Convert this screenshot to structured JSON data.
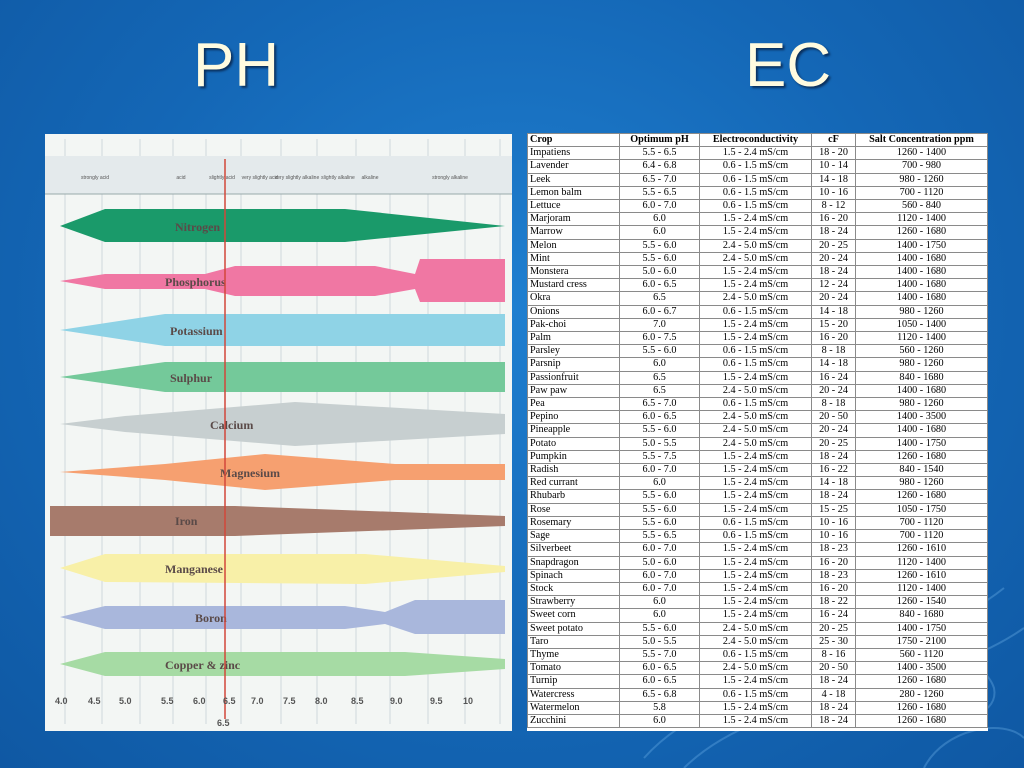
{
  "slide": {
    "ph_title": "PH",
    "ec_title": "EC"
  },
  "ph_chart": {
    "zones": [
      "strongly acid",
      "acid",
      "slightly acid",
      "very slightly acid",
      "very slightly alkaline",
      "slightly alkaline",
      "alkaline",
      "strongly alkaline"
    ],
    "nutrients": [
      "Nitrogen",
      "Phosphorus",
      "Potassium",
      "Sulphur",
      "Calcium",
      "Magnesium",
      "Iron",
      "Manganese",
      "Boron",
      "Copper & zinc"
    ],
    "ph_ticks": [
      "4.0",
      "4.5",
      "5.0",
      "5.5",
      "6.0",
      "6.5",
      "7.0",
      "7.5",
      "8.0",
      "8.5",
      "9.0",
      "9.5",
      "10"
    ],
    "marker_label": "6.5",
    "colors": {
      "Nitrogen": "#1a9a6a",
      "Phosphorus": "#f077a3",
      "Potassium": "#8fd3e6",
      "Sulphur": "#74c99a",
      "Calcium": "#c7cfd0",
      "Magnesium": "#f6a070",
      "Iron": "#a77b6c",
      "Manganese": "#f8f0a8",
      "Boron": "#a9b7dc",
      "Copper & zinc": "#a6dba4"
    }
  },
  "ec_table": {
    "headers": [
      "Crop",
      "Optimum pH",
      "Electroconductivity",
      "cF",
      "Salt Concentration ppm"
    ],
    "rows": [
      [
        "Impatiens",
        "5.5 - 6.5",
        "1.5 - 2.4 mS/cm",
        "18 - 20",
        "1260 - 1400"
      ],
      [
        "Lavender",
        "6.4 - 6.8",
        "0.6 - 1.5 mS/cm",
        "10 - 14",
        "700 - 980"
      ],
      [
        "Leek",
        "6.5 - 7.0",
        "0.6 - 1.5 mS/cm",
        "14 - 18",
        "980 - 1260"
      ],
      [
        "Lemon balm",
        "5.5 - 6.5",
        "0.6 - 1.5 mS/cm",
        "10 - 16",
        "700 - 1120"
      ],
      [
        "Lettuce",
        "6.0 - 7.0",
        "0.6 - 1.5 mS/cm",
        "8 - 12",
        "560 - 840"
      ],
      [
        "Marjoram",
        "6.0",
        "1.5 - 2.4 mS/cm",
        "16 - 20",
        "1120 - 1400"
      ],
      [
        "Marrow",
        "6.0",
        "1.5 - 2.4 mS/cm",
        "18 - 24",
        "1260 - 1680"
      ],
      [
        "Melon",
        "5.5 - 6.0",
        "2.4 - 5.0 mS/cm",
        "20 - 25",
        "1400 - 1750"
      ],
      [
        "Mint",
        "5.5 - 6.0",
        "2.4 - 5.0 mS/cm",
        "20 - 24",
        "1400 - 1680"
      ],
      [
        "Monstera",
        "5.0 - 6.0",
        "1.5 - 2.4 mS/cm",
        "18 - 24",
        "1400 - 1680"
      ],
      [
        "Mustard cress",
        "6.0 - 6.5",
        "1.5 - 2.4 mS/cm",
        "12 - 24",
        "1400 - 1680"
      ],
      [
        "Okra",
        "6.5",
        "2.4 - 5.0 mS/cm",
        "20 - 24",
        "1400 - 1680"
      ],
      [
        "Onions",
        "6.0 - 6.7",
        "0.6 - 1.5 mS/cm",
        "14 - 18",
        "980 - 1260"
      ],
      [
        "Pak-choi",
        "7.0",
        "1.5 - 2.4 mS/cm",
        "15 - 20",
        "1050 - 1400"
      ],
      [
        "Palm",
        "6.0 - 7.5",
        "1.5 - 2.4 mS/cm",
        "16 - 20",
        "1120 - 1400"
      ],
      [
        "Parsley",
        "5.5 - 6.0",
        "0.6 - 1.5 mS/cm",
        "8 - 18",
        "560 - 1260"
      ],
      [
        "Parsnip",
        "6.0",
        "0.6 - 1.5 mS/cm",
        "14 - 18",
        "980 - 1260"
      ],
      [
        "Passionfruit",
        "6.5",
        "1.5 - 2.4 mS/cm",
        "16 - 24",
        "840 - 1680"
      ],
      [
        "Paw paw",
        "6.5",
        "2.4 - 5.0 mS/cm",
        "20 - 24",
        "1400 - 1680"
      ],
      [
        "Pea",
        "6.5 - 7.0",
        "0.6 - 1.5 mS/cm",
        "8 - 18",
        "980 - 1260"
      ],
      [
        "Pepino",
        "6.0 - 6.5",
        "2.4 - 5.0 mS/cm",
        "20 - 50",
        "1400 - 3500"
      ],
      [
        "Pineapple",
        "5.5 - 6.0",
        "2.4 - 5.0 mS/cm",
        "20 - 24",
        "1400 - 1680"
      ],
      [
        "Potato",
        "5.0 - 5.5",
        "2.4 - 5.0 mS/cm",
        "20 - 25",
        "1400 - 1750"
      ],
      [
        "Pumpkin",
        "5.5 - 7.5",
        "1.5 - 2.4 mS/cm",
        "18 - 24",
        "1260 - 1680"
      ],
      [
        "Radish",
        "6.0 - 7.0",
        "1.5 - 2.4 mS/cm",
        "16 - 22",
        "840 - 1540"
      ],
      [
        "Red currant",
        "6.0",
        "1.5 - 2.4 mS/cm",
        "14 - 18",
        "980 - 1260"
      ],
      [
        "Rhubarb",
        "5.5 - 6.0",
        "1.5 - 2.4 mS/cm",
        "18 - 24",
        "1260 - 1680"
      ],
      [
        "Rose",
        "5.5 - 6.0",
        "1.5 - 2.4 mS/cm",
        "15 - 25",
        "1050 - 1750"
      ],
      [
        "Rosemary",
        "5.5 - 6.0",
        "0.6 - 1.5 mS/cm",
        "10 - 16",
        "700 - 1120"
      ],
      [
        "Sage",
        "5.5 - 6.5",
        "0.6 - 1.5 mS/cm",
        "10 - 16",
        "700 - 1120"
      ],
      [
        "Silverbeet",
        "6.0 - 7.0",
        "1.5 - 2.4 mS/cm",
        "18 - 23",
        "1260 - 1610"
      ],
      [
        "Snapdragon",
        "5.0 - 6.0",
        "1.5 - 2.4 mS/cm",
        "16 - 20",
        "1120 - 1400"
      ],
      [
        "Spinach",
        "6.0 - 7.0",
        "1.5 - 2.4 mS/cm",
        "18 - 23",
        "1260 - 1610"
      ],
      [
        "Stock",
        "6.0 - 7.0",
        "1.5 - 2.4 mS/cm",
        "16 - 20",
        "1120 - 1400"
      ],
      [
        "Strawberry",
        "6.0",
        "1.5 - 2.4 mS/cm",
        "18 - 22",
        "1260 - 1540"
      ],
      [
        "Sweet corn",
        "6.0",
        "1.5 - 2.4 mS/cm",
        "16 - 24",
        "840 - 1680"
      ],
      [
        "Sweet potato",
        "5.5 - 6.0",
        "2.4 - 5.0 mS/cm",
        "20 - 25",
        "1400 - 1750"
      ],
      [
        "Taro",
        "5.0 - 5.5",
        "2.4 - 5.0 mS/cm",
        "25 - 30",
        "1750 - 2100"
      ],
      [
        "Thyme",
        "5.5 - 7.0",
        "0.6 - 1.5 mS/cm",
        "8 - 16",
        "560 - 1120"
      ],
      [
        "Tomato",
        "6.0 - 6.5",
        "2.4 - 5.0 mS/cm",
        "20 - 50",
        "1400 - 3500"
      ],
      [
        "Turnip",
        "6.0 - 6.5",
        "1.5 - 2.4 mS/cm",
        "18 - 24",
        "1260 - 1680"
      ],
      [
        "Watercress",
        "6.5 - 6.8",
        "0.6 - 1.5 mS/cm",
        "4 - 18",
        "280 - 1260"
      ],
      [
        "Watermelon",
        "5.8",
        "1.5 - 2.4 mS/cm",
        "18 - 24",
        "1260 - 1680"
      ],
      [
        "Zucchini",
        "6.0",
        "1.5 - 2.4 mS/cm",
        "18 - 24",
        "1260 - 1680"
      ]
    ]
  }
}
